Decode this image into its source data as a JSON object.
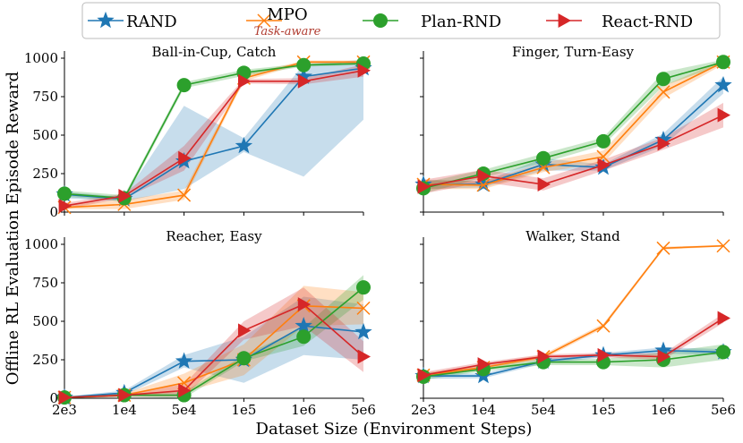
{
  "colors": {
    "RAND": "#1f77b4",
    "MPO": "#ff7f0e",
    "Plan-RND": "#2ca02c",
    "React-RND": "#d62728"
  },
  "legend": {
    "items": [
      {
        "label": "RAND",
        "marker": "star-icon"
      },
      {
        "label": "MPO",
        "sublabel": "Task-aware",
        "marker": "x-icon"
      },
      {
        "label": "Plan-RND",
        "marker": "circle-icon"
      },
      {
        "label": "React-RND",
        "marker": "triangle-right-icon"
      }
    ]
  },
  "axes": {
    "xlabel": "Dataset Size (Environment Steps)",
    "ylabel": "Offline RL Evaluation Episode Reward"
  },
  "chart_data": [
    {
      "type": "line",
      "title": "Ball-in-Cup, Catch",
      "categories": [
        "2e3",
        "1e4",
        "5e4",
        "1e5",
        "1e6",
        "5e6"
      ],
      "ylim": [
        0,
        1000
      ],
      "yticks": [
        0,
        250,
        500,
        750,
        1000
      ],
      "series": [
        {
          "name": "RAND",
          "values": [
            115,
            85,
            330,
            430,
            880,
            935
          ],
          "lower": [
            90,
            70,
            150,
            390,
            230,
            600
          ],
          "upper": [
            130,
            100,
            690,
            480,
            960,
            990
          ]
        },
        {
          "name": "MPO",
          "values": [
            30,
            50,
            110,
            870,
            975,
            975
          ],
          "lower": [
            20,
            20,
            80,
            850,
            965,
            965
          ],
          "upper": [
            50,
            80,
            140,
            890,
            985,
            985
          ]
        },
        {
          "name": "Plan-RND",
          "values": [
            120,
            90,
            825,
            905,
            955,
            965
          ],
          "lower": [
            100,
            70,
            805,
            885,
            945,
            955
          ],
          "upper": [
            140,
            110,
            845,
            925,
            965,
            975
          ]
        },
        {
          "name": "React-RND",
          "values": [
            40,
            105,
            350,
            850,
            850,
            920
          ],
          "lower": [
            20,
            90,
            270,
            835,
            830,
            880
          ],
          "upper": [
            60,
            120,
            430,
            865,
            870,
            960
          ]
        }
      ]
    },
    {
      "type": "line",
      "title": "Finger, Turn-Easy",
      "categories": [
        "2e3",
        "1e4",
        "5e4",
        "1e5",
        "1e6",
        "5e6"
      ],
      "ylim": [
        0,
        1000
      ],
      "yticks": [
        0,
        250,
        500,
        750,
        1000
      ],
      "series": [
        {
          "name": "RAND",
          "values": [
            180,
            180,
            310,
            290,
            470,
            825
          ],
          "lower": [
            150,
            160,
            270,
            270,
            430,
            770
          ],
          "upper": [
            210,
            200,
            350,
            310,
            510,
            880
          ]
        },
        {
          "name": "MPO",
          "values": [
            180,
            175,
            290,
            360,
            780,
            975
          ],
          "lower": [
            150,
            150,
            260,
            320,
            740,
            960
          ],
          "upper": [
            210,
            200,
            320,
            400,
            820,
            990
          ]
        },
        {
          "name": "Plan-RND",
          "values": [
            155,
            250,
            350,
            460,
            865,
            975
          ],
          "lower": [
            120,
            225,
            320,
            435,
            820,
            960
          ],
          "upper": [
            190,
            275,
            380,
            485,
            910,
            990
          ]
        },
        {
          "name": "React-RND",
          "values": [
            165,
            235,
            180,
            305,
            445,
            630
          ],
          "lower": [
            120,
            195,
            140,
            270,
            405,
            550
          ],
          "upper": [
            210,
            275,
            220,
            340,
            485,
            710
          ]
        }
      ]
    },
    {
      "type": "line",
      "title": "Reacher, Easy",
      "categories": [
        "2e3",
        "1e4",
        "5e4",
        "1e5",
        "1e6",
        "5e6"
      ],
      "ylim": [
        0,
        1000
      ],
      "yticks": [
        0,
        250,
        500,
        750,
        1000
      ],
      "series": [
        {
          "name": "RAND",
          "values": [
            5,
            35,
            240,
            250,
            470,
            430
          ],
          "lower": [
            0,
            20,
            200,
            100,
            280,
            250
          ],
          "upper": [
            10,
            50,
            280,
            400,
            660,
            610
          ]
        },
        {
          "name": "MPO",
          "values": [
            5,
            20,
            100,
            250,
            600,
            585
          ],
          "lower": [
            0,
            10,
            40,
            150,
            470,
            480
          ],
          "upper": [
            10,
            30,
            160,
            350,
            730,
            690
          ]
        },
        {
          "name": "Plan-RND",
          "values": [
            5,
            20,
            20,
            260,
            400,
            720
          ],
          "lower": [
            0,
            10,
            0,
            240,
            340,
            640
          ],
          "upper": [
            10,
            30,
            40,
            280,
            460,
            800
          ]
        },
        {
          "name": "React-RND",
          "values": [
            5,
            20,
            50,
            440,
            610,
            270
          ],
          "lower": [
            0,
            10,
            10,
            380,
            470,
            170
          ],
          "upper": [
            10,
            30,
            90,
            500,
            720,
            370
          ]
        }
      ]
    },
    {
      "type": "line",
      "title": "Walker, Stand",
      "categories": [
        "2e3",
        "1e4",
        "5e4",
        "1e5",
        "1e6",
        "5e6"
      ],
      "ylim": [
        0,
        1000
      ],
      "yticks": [
        0,
        250,
        500,
        750,
        1000
      ],
      "series": [
        {
          "name": "RAND",
          "values": [
            145,
            145,
            240,
            280,
            310,
            300
          ],
          "lower": [
            125,
            130,
            225,
            265,
            290,
            280
          ],
          "upper": [
            165,
            160,
            255,
            295,
            330,
            320
          ]
        },
        {
          "name": "MPO",
          "values": [
            150,
            200,
            270,
            470,
            975,
            990
          ],
          "lower": [
            135,
            185,
            255,
            455,
            965,
            985
          ],
          "upper": [
            165,
            215,
            285,
            485,
            985,
            995
          ]
        },
        {
          "name": "Plan-RND",
          "values": [
            140,
            190,
            235,
            235,
            250,
            300
          ],
          "lower": [
            120,
            175,
            215,
            215,
            200,
            250
          ],
          "upper": [
            160,
            205,
            255,
            255,
            300,
            350
          ]
        },
        {
          "name": "React-RND",
          "values": [
            150,
            220,
            270,
            280,
            270,
            520
          ],
          "lower": [
            130,
            205,
            255,
            265,
            250,
            490
          ],
          "upper": [
            170,
            235,
            285,
            295,
            290,
            550
          ]
        }
      ]
    }
  ]
}
